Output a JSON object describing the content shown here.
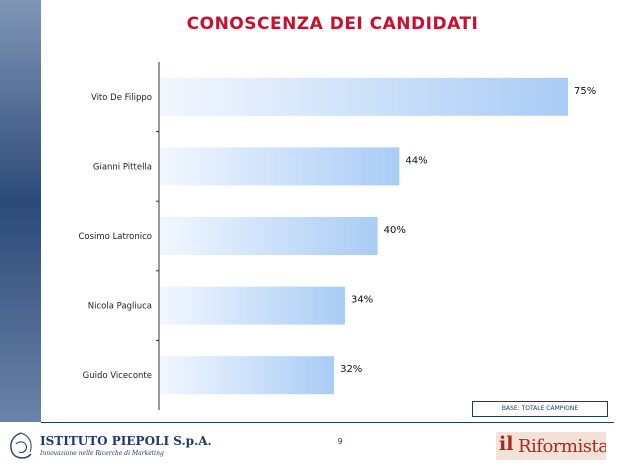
{
  "title": "CONOSCENZA DEI CANDIDATI",
  "base_note": "BASE: TOTALE CAMPIONE",
  "page_number": "9",
  "footer": {
    "left_logo": {
      "name": "ISTITUTO PIEPOLI S.p.A.",
      "tagline": "Innovazione nelle Ricerche di Marketing"
    },
    "right_logo": {
      "il": "il",
      "word": "Riformista"
    }
  },
  "colors": {
    "title": "#c8102e",
    "bar_start": "#f2f7ff",
    "bar_end": "#a9ccf5",
    "axis": "#333333",
    "text": "#1f3a6b"
  },
  "chart_data": {
    "type": "bar",
    "orientation": "horizontal",
    "title": "CONOSCENZA DEI CANDIDATI",
    "categories": [
      "Vito De Filippo",
      "Gianni Pittella",
      "Cosimo Latronico",
      "Nicola Pagliuca",
      "Guido Viceconte"
    ],
    "values": [
      75,
      44,
      40,
      34,
      32
    ],
    "value_labels": [
      "75%",
      "44%",
      "40%",
      "34%",
      "32%"
    ],
    "unit": "%",
    "xlim": [
      0,
      75
    ],
    "grid": false,
    "legend": "none"
  }
}
